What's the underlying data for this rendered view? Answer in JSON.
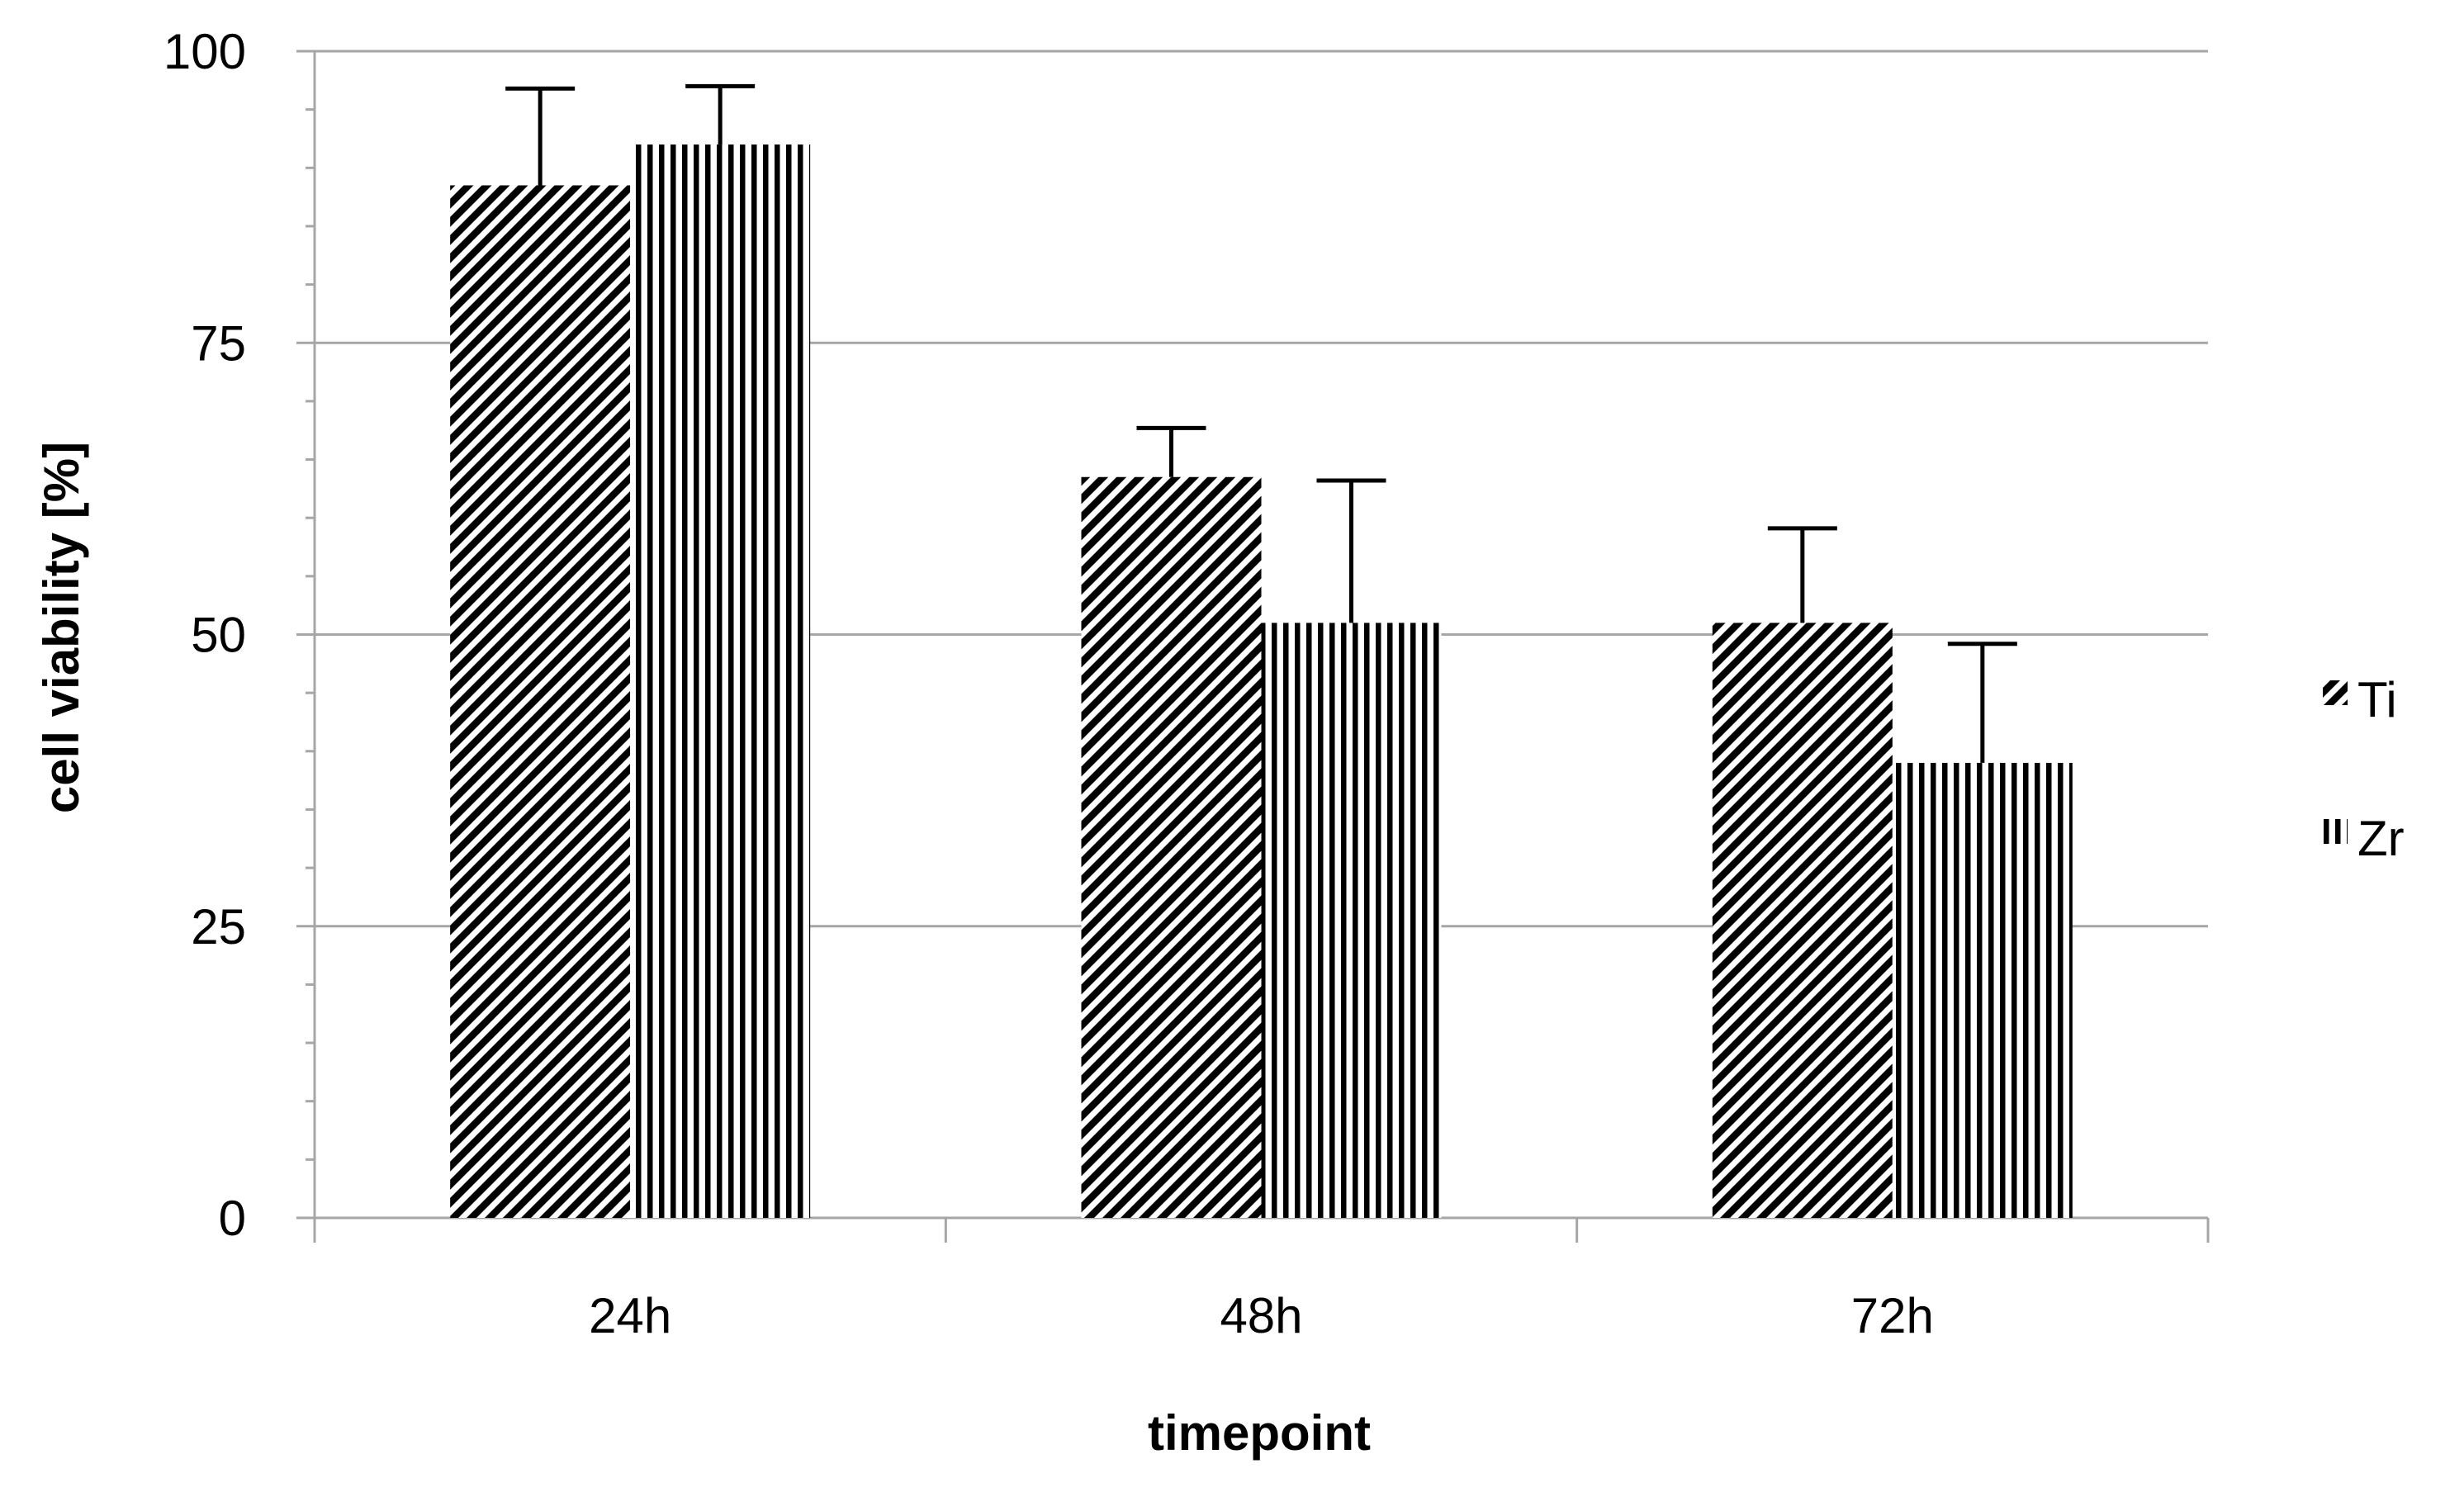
{
  "chart_data": {
    "type": "bar",
    "title": "",
    "xlabel": "timepoint",
    "ylabel": "cell viability [%]",
    "categories": [
      "24h",
      "48h",
      "72h"
    ],
    "series": [
      {
        "name": "Ti",
        "values": [
          88.5,
          63.5,
          51
        ],
        "error": [
          8.3,
          4.2,
          8.1
        ],
        "pattern": "diagonal-stripes",
        "color": "#000000"
      },
      {
        "name": "Zr",
        "values": [
          92,
          51,
          39
        ],
        "error": [
          5,
          12.2,
          10.2
        ],
        "pattern": "vertical-stripes",
        "color": "#000000"
      }
    ],
    "ylim": [
      0,
      100
    ],
    "yticks": [
      0,
      25,
      50,
      75,
      100
    ],
    "yticklabels": [
      "0",
      "25",
      "50",
      "75",
      "100"
    ],
    "error_bars": "upper",
    "grid": true,
    "legend_position": "right"
  },
  "colors": {
    "grid": "#a6a6a6",
    "axis": "#a6a6a6",
    "bar_stripes": "#000000",
    "background": "#ffffff"
  }
}
